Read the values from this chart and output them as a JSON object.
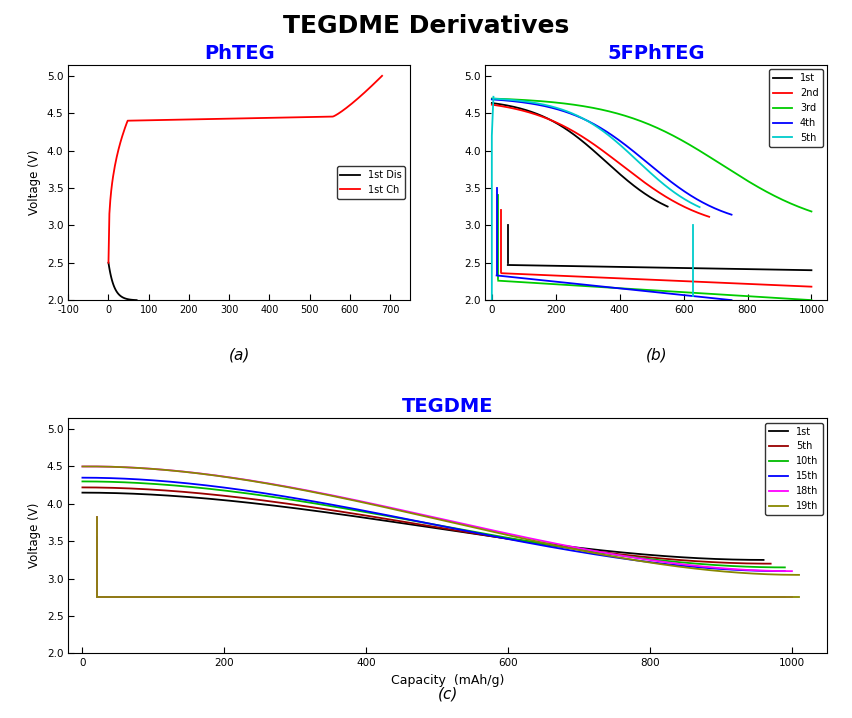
{
  "title": "TEGDME Derivatives",
  "title_fontsize": 18,
  "title_fontweight": "bold",
  "panel_a_title": "PhTEG",
  "panel_b_title": "5FPhTEG",
  "panel_c_title": "TEGDME",
  "panel_titles_color": "#0000FF",
  "panel_titles_fontsize": 14,
  "panel_titles_fontweight": "bold",
  "ylabel": "Voltage (V)",
  "xlabel_c": "Capacity  (mAh/g)",
  "ylim": [
    2.0,
    5.15
  ],
  "yticks": [
    2.0,
    2.5,
    3.0,
    3.5,
    4.0,
    4.5,
    5.0
  ],
  "panel_a_xlim": [
    -100,
    750
  ],
  "panel_a_xticks": [
    -100,
    0,
    100,
    200,
    300,
    400,
    500,
    600,
    700
  ],
  "panel_b_xlim": [
    -20,
    1050
  ],
  "panel_b_xticks": [
    0,
    200,
    400,
    600,
    800,
    1000
  ],
  "panel_c_xlim": [
    -20,
    1050
  ],
  "panel_c_xticks": [
    0,
    200,
    400,
    600,
    800,
    1000
  ],
  "label_a": "(a)",
  "label_b": "(b)",
  "label_c": "(c)",
  "legend_a": [
    "1st Dis",
    "1st Ch"
  ],
  "legend_a_colors": [
    "#000000",
    "#FF0000"
  ],
  "legend_b": [
    "1st",
    "2nd",
    "3rd",
    "4th",
    "5th"
  ],
  "legend_b_colors": [
    "#000000",
    "#FF0000",
    "#00CC00",
    "#0000FF",
    "#00CCCC"
  ],
  "legend_c": [
    "1st",
    "5th",
    "10th",
    "15th",
    "18th",
    "19th"
  ],
  "legend_c_colors": [
    "#000000",
    "#990000",
    "#00BB00",
    "#0000FF",
    "#FF00FF",
    "#888800"
  ]
}
